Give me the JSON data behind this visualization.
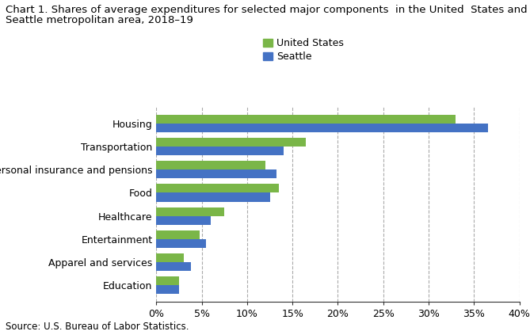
{
  "title_line1": "Chart 1. Shares of average expenditures for selected major components  in the United  States and",
  "title_line2": "Seattle metropolitan area, 2018–19",
  "categories": [
    "Education",
    "Apparel and services",
    "Entertainment",
    "Healthcare",
    "Food",
    "Personal insurance and pensions",
    "Transportation",
    "Housing"
  ],
  "us_values": [
    2.5,
    3.0,
    4.8,
    7.5,
    13.5,
    12.0,
    16.5,
    33.0
  ],
  "seattle_values": [
    2.5,
    3.8,
    5.5,
    6.0,
    12.5,
    13.2,
    14.0,
    36.5
  ],
  "us_color": "#7ab648",
  "seattle_color": "#4472c4",
  "legend_labels": [
    "United States",
    "Seattle"
  ],
  "xlim": [
    0,
    40
  ],
  "xticks": [
    0,
    5,
    10,
    15,
    20,
    25,
    30,
    35,
    40
  ],
  "xticklabels": [
    "0%",
    "5%",
    "10%",
    "15%",
    "20%",
    "25%",
    "30%",
    "35%",
    "40%"
  ],
  "source": "Source: U.S. Bureau of Labor Statistics.",
  "background_color": "#ffffff",
  "title_fontsize": 9.5,
  "tick_fontsize": 9,
  "label_fontsize": 9,
  "bar_height": 0.38
}
